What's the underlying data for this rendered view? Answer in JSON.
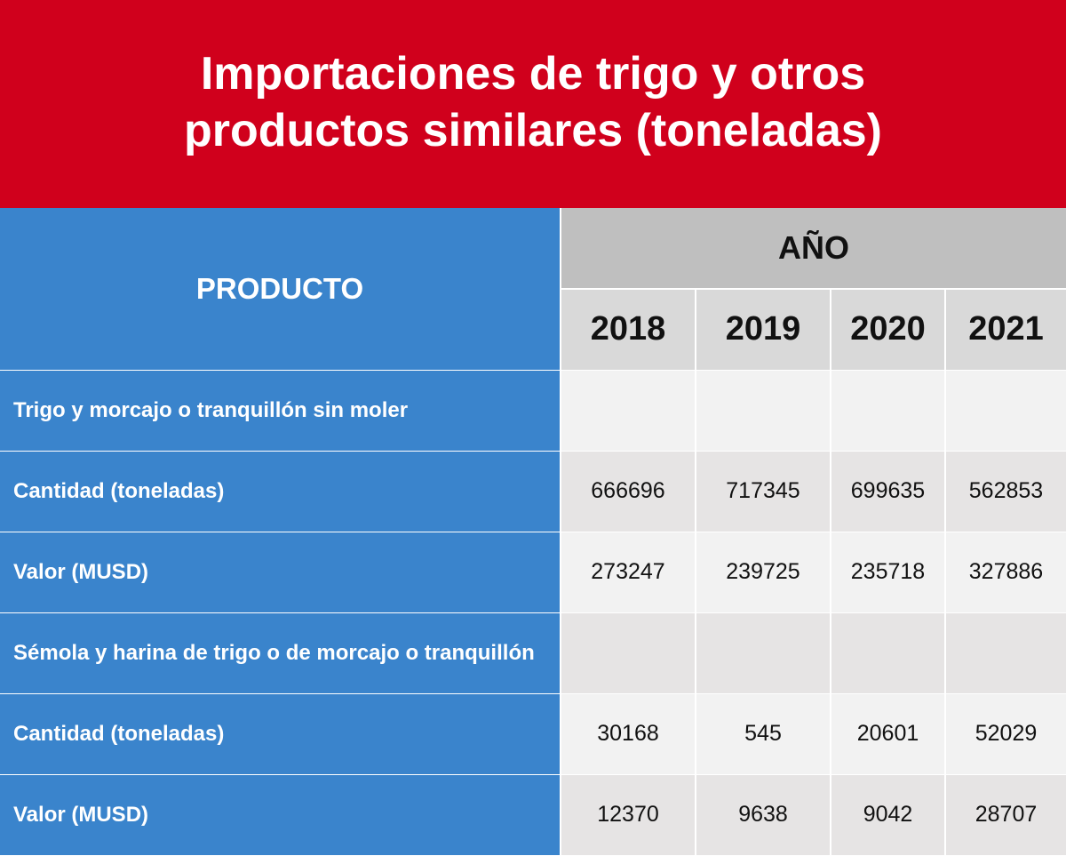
{
  "title": "Importaciones de trigo y otros productos similares (toneladas)",
  "colors": {
    "title_bg": "#d0001c",
    "label_bg": "#3a84cc",
    "header_bg": "#bfbfbf",
    "year_bg": "#d9d9d9",
    "row_light": "#f2f2f2",
    "row_dark": "#e6e4e4"
  },
  "chart_data": {
    "type": "table",
    "title": "Importaciones de trigo y otros productos similares (toneladas)",
    "header_product": "PRODUCTO",
    "header_group": "AÑO",
    "years": [
      "2018",
      "2019",
      "2020",
      "2021"
    ],
    "rows": [
      {
        "label": "Trigo y morcajo o tranquillón sin moler",
        "values": [
          "",
          "",
          "",
          ""
        ]
      },
      {
        "label": "Cantidad (toneladas)",
        "values": [
          "666696",
          "717345",
          "699635",
          "562853"
        ]
      },
      {
        "label": "Valor (MUSD)",
        "values": [
          "273247",
          "239725",
          "235718",
          "327886"
        ]
      },
      {
        "label": "Sémola y harina de trigo o de morcajo o tranquillón",
        "values": [
          "",
          "",
          "",
          ""
        ]
      },
      {
        "label": "Cantidad (toneladas)",
        "values": [
          "30168",
          "545",
          "20601",
          "52029"
        ]
      },
      {
        "label": "Valor (MUSD)",
        "values": [
          "12370",
          "9638",
          "9042",
          "28707"
        ]
      }
    ]
  }
}
